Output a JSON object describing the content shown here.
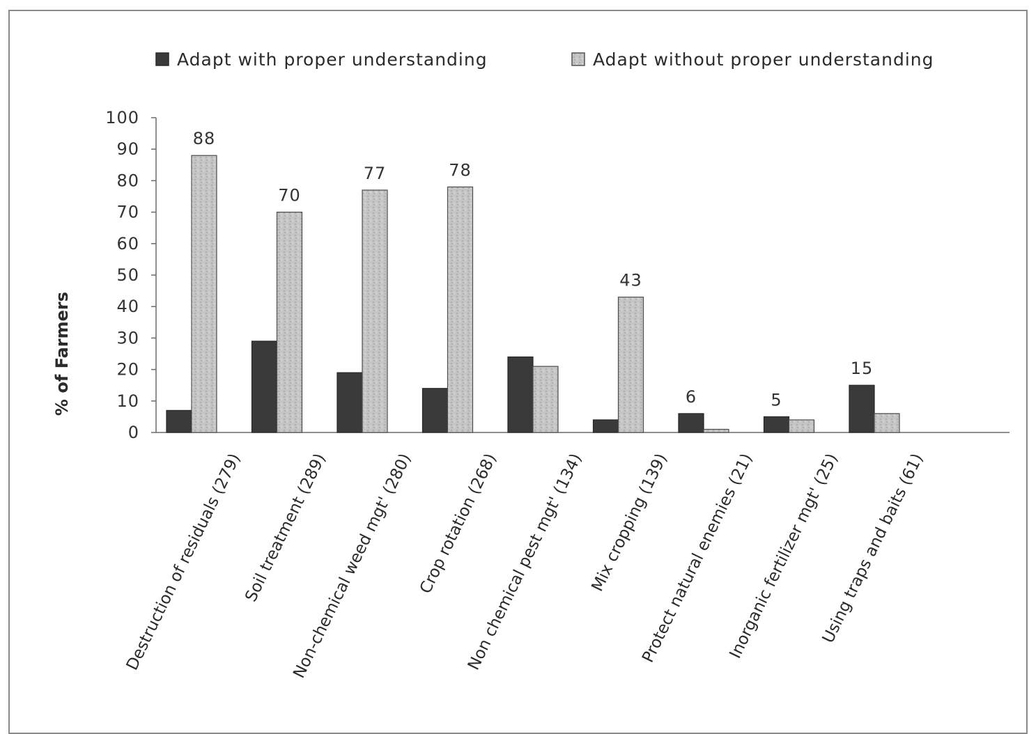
{
  "chart_data": {
    "type": "bar",
    "title": "",
    "xlabel": "",
    "ylabel": "% of Farmers",
    "ylim": [
      0,
      100
    ],
    "yticks": [
      0,
      10,
      20,
      30,
      40,
      50,
      60,
      70,
      80,
      90,
      100
    ],
    "legend_position": "top",
    "grid": false,
    "categories": [
      "Destruction of residuals (279)",
      "Soil treatment  (289)",
      "Non-chemical weed mgt' (280)",
      "Crop rotation  (268)",
      "Non chemical pest mgt' (134)",
      "Mix cropping (139)",
      "Protect natural enemies (21)",
      "Inorganic fertilizer mgt' (25)",
      "Using traps and baits (61)"
    ],
    "series": [
      {
        "name": "Adapt with proper understanding",
        "color": "#3a3a3a",
        "values": [
          7,
          29,
          19,
          14,
          24,
          4,
          6,
          5,
          15
        ]
      },
      {
        "name": "Adapt without proper understanding",
        "color": "#bdbdbd",
        "values": [
          88,
          70,
          77,
          78,
          21,
          43,
          1,
          4,
          6
        ]
      }
    ],
    "data_labels": [
      {
        "category_index": 0,
        "series_index": 1,
        "text": "88"
      },
      {
        "category_index": 1,
        "series_index": 1,
        "text": "70"
      },
      {
        "category_index": 2,
        "series_index": 1,
        "text": "77"
      },
      {
        "category_index": 3,
        "series_index": 1,
        "text": "78"
      },
      {
        "category_index": 5,
        "series_index": 1,
        "text": "43"
      },
      {
        "category_index": 6,
        "series_index": 0,
        "text": "6"
      },
      {
        "category_index": 7,
        "series_index": 0,
        "text": "5"
      },
      {
        "category_index": 8,
        "series_index": 0,
        "text": "15"
      }
    ]
  }
}
